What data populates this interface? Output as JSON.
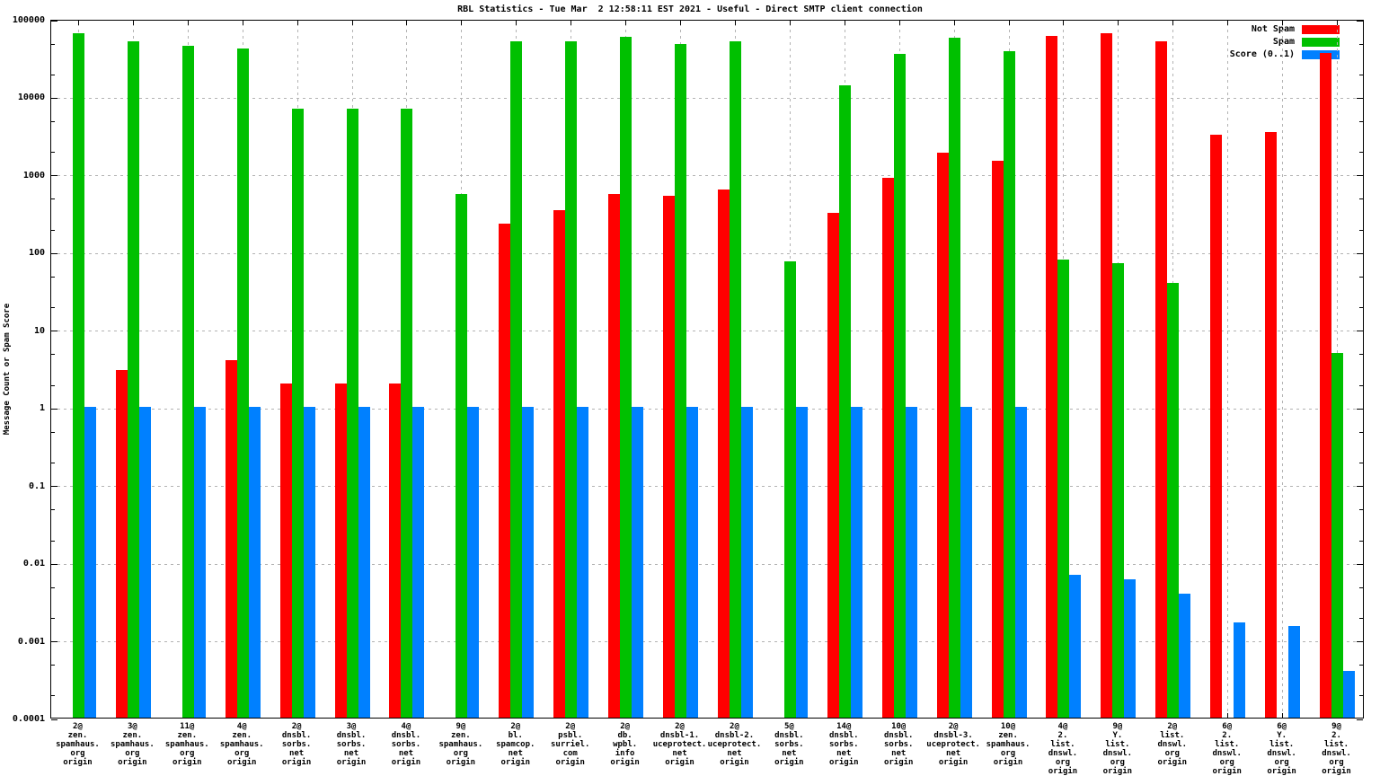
{
  "chart_data": {
    "type": "bar",
    "title": "RBL Statistics - Tue Mar  2 12:58:11 EST 2021 - Useful - Direct SMTP client connection",
    "ylabel": "Message Count or Spam Score",
    "yscale": "log",
    "ylim": [
      0.0001,
      100000
    ],
    "y_tick_labels": [
      "100000",
      "10000",
      "1000",
      "100",
      "10",
      "1",
      "0.1",
      "0.01",
      "0.001",
      "0.0001"
    ],
    "grid": true,
    "legend_position": "top-right-inside",
    "background": "#ffffff",
    "categories": [
      [
        "2@",
        "zen.",
        "spamhaus.",
        "org",
        "origin"
      ],
      [
        "3@",
        "zen.",
        "spamhaus.",
        "org",
        "origin"
      ],
      [
        "11@",
        "zen.",
        "spamhaus.",
        "org",
        "origin"
      ],
      [
        "4@",
        "zen.",
        "spamhaus.",
        "org",
        "origin"
      ],
      [
        "2@",
        "dnsbl.",
        "sorbs.",
        "net",
        "origin"
      ],
      [
        "3@",
        "dnsbl.",
        "sorbs.",
        "net",
        "origin"
      ],
      [
        "4@",
        "dnsbl.",
        "sorbs.",
        "net",
        "origin"
      ],
      [
        "9@",
        "zen.",
        "spamhaus.",
        "org",
        "origin"
      ],
      [
        "2@",
        "bl.",
        "spamcop.",
        "net",
        "origin"
      ],
      [
        "2@",
        "psbl.",
        "surriel.",
        "com",
        "origin"
      ],
      [
        "2@",
        "db.",
        "wpbl.",
        "info",
        "origin"
      ],
      [
        "2@",
        "dnsbl-1.",
        "uceprotect.",
        "net",
        "origin"
      ],
      [
        "2@",
        "dnsbl-2.",
        "uceprotect.",
        "net",
        "origin"
      ],
      [
        "5@",
        "dnsbl.",
        "sorbs.",
        "net",
        "origin"
      ],
      [
        "14@",
        "dnsbl.",
        "sorbs.",
        "net",
        "origin"
      ],
      [
        "10@",
        "dnsbl.",
        "sorbs.",
        "net",
        "origin"
      ],
      [
        "2@",
        "dnsbl-3.",
        "uceprotect.",
        "net",
        "origin"
      ],
      [
        "10@",
        "zen.",
        "spamhaus.",
        "org",
        "origin"
      ],
      [
        "4@",
        "2.",
        "list.",
        "dnswl.",
        "org",
        "origin"
      ],
      [
        "9@",
        "Y.",
        "list.",
        "dnswl.",
        "org",
        "origin"
      ],
      [
        "2@",
        "list.",
        "dnswl.",
        "org",
        "origin"
      ],
      [
        "6@",
        "2.",
        "list.",
        "dnswl.",
        "org",
        "origin"
      ],
      [
        "6@",
        "Y.",
        "list.",
        "dnswl.",
        "org",
        "origin"
      ],
      [
        "9@",
        "2.",
        "list.",
        "dnswl.",
        "org",
        "origin"
      ]
    ],
    "series": [
      {
        "name": "Not Spam",
        "key": "not-spam",
        "color": "#ff0000",
        "values": [
          null,
          3,
          null,
          4,
          2,
          2,
          2,
          null,
          230,
          340,
          550,
          530,
          640,
          null,
          320,
          900,
          1900,
          1500,
          60000,
          65000,
          52000,
          3200,
          3500,
          36000
        ]
      },
      {
        "name": "Spam",
        "key": "spam",
        "color": "#00c000",
        "values": [
          65000,
          52000,
          45000,
          42000,
          7000,
          7000,
          7000,
          550,
          52000,
          51000,
          59000,
          47000,
          52000,
          75,
          14000,
          35000,
          57000,
          38000,
          80,
          72,
          40,
          null,
          null,
          5
        ]
      },
      {
        "name": "Score (0..1)",
        "key": "score",
        "color": "#0080ff",
        "values": [
          1,
          1,
          1,
          1,
          1,
          1,
          1,
          1,
          1,
          1,
          1,
          1,
          1,
          1,
          1,
          1,
          1,
          1,
          0.007,
          0.006,
          0.004,
          0.0017,
          0.0015,
          0.0004
        ]
      }
    ]
  }
}
